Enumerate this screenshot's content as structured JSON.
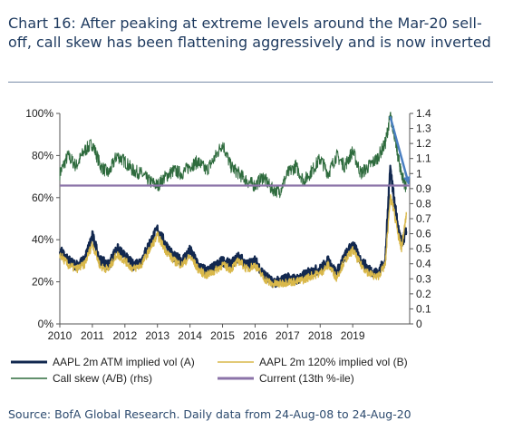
{
  "title": "Chart 16: After peaking at extreme levels around the Mar-20 sell-off, call skew has been flattening aggressively and is now inverted",
  "source": "Source: BofA Global Research. Daily data from 24-Aug-08 to 24-Aug-20",
  "colors": {
    "atm": "#12284f",
    "otm": "#d9b84a",
    "skew": "#2e6b3d",
    "current": "#8b73a8",
    "arrow": "#4a7fc1"
  },
  "chart_data": {
    "type": "line",
    "x_ticks": [
      "2010",
      "2011",
      "2012",
      "2013",
      "2014",
      "2015",
      "2016",
      "2017",
      "2018",
      "2019"
    ],
    "y_left_ticks": [
      "0%",
      "20%",
      "40%",
      "60%",
      "80%",
      "100%"
    ],
    "y_right_ticks": [
      "0",
      "0.1",
      "0.2",
      "0.3",
      "0.4",
      "0.5",
      "0.6",
      "0.7",
      "0.8",
      "0.9",
      "1",
      "1.1",
      "1.2",
      "1.3",
      "1.4"
    ],
    "ylim_left": [
      0,
      1.0
    ],
    "ylim_right": [
      0,
      1.4
    ],
    "xlim": [
      2010,
      2020.75
    ],
    "series": [
      {
        "name": "AAPL 2m ATM implied vol (A)",
        "axis": "left",
        "x": [
          2010.0,
          2010.25,
          2010.5,
          2010.75,
          2011.0,
          2011.25,
          2011.5,
          2011.75,
          2012.0,
          2012.25,
          2012.5,
          2012.75,
          2013.0,
          2013.25,
          2013.5,
          2013.75,
          2014.0,
          2014.25,
          2014.5,
          2014.75,
          2015.0,
          2015.25,
          2015.5,
          2015.75,
          2016.0,
          2016.25,
          2016.5,
          2016.75,
          2017.0,
          2017.25,
          2017.5,
          2017.75,
          2018.0,
          2018.25,
          2018.5,
          2018.75,
          2019.0,
          2019.25,
          2019.5,
          2019.75,
          2020.0,
          2020.15,
          2020.25,
          2020.4,
          2020.5,
          2020.65
        ],
        "values": [
          0.35,
          0.3,
          0.28,
          0.3,
          0.42,
          0.3,
          0.28,
          0.36,
          0.32,
          0.28,
          0.3,
          0.38,
          0.45,
          0.38,
          0.32,
          0.3,
          0.35,
          0.28,
          0.25,
          0.27,
          0.3,
          0.28,
          0.32,
          0.28,
          0.3,
          0.24,
          0.2,
          0.2,
          0.22,
          0.21,
          0.23,
          0.25,
          0.26,
          0.3,
          0.24,
          0.32,
          0.38,
          0.3,
          0.26,
          0.24,
          0.3,
          0.75,
          0.62,
          0.45,
          0.38,
          0.44
        ]
      },
      {
        "name": "AAPL 2m 120% implied vol (B)",
        "axis": "left",
        "x": [
          2010.0,
          2010.25,
          2010.5,
          2010.75,
          2011.0,
          2011.25,
          2011.5,
          2011.75,
          2012.0,
          2012.25,
          2012.5,
          2012.75,
          2013.0,
          2013.25,
          2013.5,
          2013.75,
          2014.0,
          2014.25,
          2014.5,
          2014.75,
          2015.0,
          2015.25,
          2015.5,
          2015.75,
          2016.0,
          2016.25,
          2016.5,
          2016.75,
          2017.0,
          2017.25,
          2017.5,
          2017.75,
          2018.0,
          2018.25,
          2018.5,
          2018.75,
          2019.0,
          2019.25,
          2019.5,
          2019.75,
          2020.0,
          2020.15,
          2020.25,
          2020.4,
          2020.5,
          2020.65
        ],
        "values": [
          0.33,
          0.28,
          0.26,
          0.28,
          0.38,
          0.27,
          0.26,
          0.33,
          0.3,
          0.26,
          0.28,
          0.35,
          0.42,
          0.35,
          0.3,
          0.28,
          0.32,
          0.26,
          0.23,
          0.25,
          0.28,
          0.26,
          0.3,
          0.26,
          0.28,
          0.22,
          0.19,
          0.19,
          0.2,
          0.2,
          0.21,
          0.23,
          0.24,
          0.28,
          0.22,
          0.3,
          0.35,
          0.28,
          0.24,
          0.22,
          0.28,
          0.6,
          0.55,
          0.42,
          0.36,
          0.52
        ]
      },
      {
        "name": "Call skew (A/B) (rhs)",
        "axis": "right",
        "x": [
          2010.0,
          2010.25,
          2010.5,
          2010.75,
          2011.0,
          2011.25,
          2011.5,
          2011.75,
          2012.0,
          2012.25,
          2012.5,
          2012.75,
          2013.0,
          2013.25,
          2013.5,
          2013.75,
          2014.0,
          2014.25,
          2014.5,
          2014.75,
          2015.0,
          2015.25,
          2015.5,
          2015.75,
          2016.0,
          2016.25,
          2016.5,
          2016.75,
          2017.0,
          2017.25,
          2017.5,
          2017.75,
          2018.0,
          2018.25,
          2018.5,
          2018.75,
          2019.0,
          2019.25,
          2019.5,
          2019.75,
          2020.0,
          2020.15,
          2020.25,
          2020.4,
          2020.5,
          2020.65
        ],
        "values": [
          1.0,
          1.12,
          1.05,
          1.15,
          1.2,
          1.05,
          1.0,
          1.12,
          1.08,
          1.02,
          1.0,
          0.95,
          0.92,
          0.98,
          1.02,
          1.0,
          1.05,
          1.08,
          1.02,
          1.1,
          1.2,
          1.05,
          1.0,
          0.95,
          0.92,
          0.98,
          0.9,
          0.88,
          1.0,
          1.05,
          0.95,
          1.02,
          1.1,
          1.0,
          1.12,
          1.05,
          1.15,
          1.0,
          1.05,
          1.1,
          1.2,
          1.38,
          1.3,
          1.1,
          1.0,
          0.9
        ]
      },
      {
        "name": "Current (13th %-ile)",
        "axis": "right",
        "x": [
          2010.0,
          2020.75
        ],
        "values": [
          0.92,
          0.92
        ]
      }
    ]
  }
}
